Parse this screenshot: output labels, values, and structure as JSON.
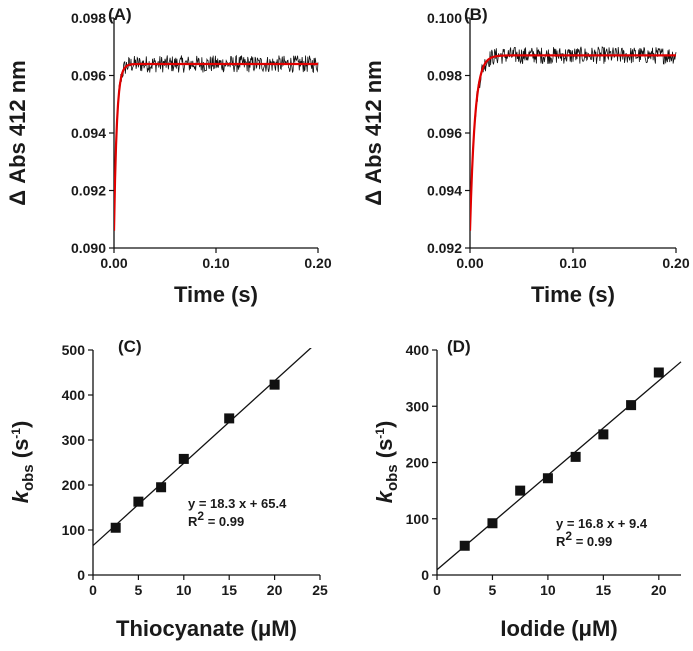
{
  "colors": {
    "fit_line": "#e00000",
    "trace": "#111111",
    "axis": "#111111"
  },
  "chart_data": [
    {
      "panel": "(A)",
      "type": "line",
      "xlabel": "Time (s)",
      "ylabel": "Δ Abs 412 nm",
      "xlim": [
        0,
        0.2
      ],
      "ylim": [
        0.09,
        0.098
      ],
      "xticks": [
        0.0,
        0.1,
        0.2
      ],
      "xtick_labels": [
        "0.00",
        "0.10",
        "0.20"
      ],
      "yticks": [
        0.09,
        0.092,
        0.094,
        0.096,
        0.098
      ],
      "ytick_labels": [
        "0.090",
        "0.092",
        "0.094",
        "0.096",
        "0.098"
      ],
      "series": [
        {
          "name": "observed trace",
          "color": "#111111",
          "y0": 0.0906,
          "plateau": 0.0964,
          "k": 360,
          "noise": 0.0003
        },
        {
          "name": "single-exponential fit",
          "color": "#e00000",
          "y0": 0.0906,
          "plateau": 0.0964,
          "k": 360
        }
      ]
    },
    {
      "panel": "(B)",
      "type": "line",
      "xlabel": "Time (s)",
      "ylabel": "Δ Abs 412 nm",
      "xlim": [
        0,
        0.2
      ],
      "ylim": [
        0.092,
        0.1
      ],
      "xticks": [
        0.0,
        0.1,
        0.2
      ],
      "xtick_labels": [
        "0.00",
        "0.10",
        "0.20"
      ],
      "yticks": [
        0.092,
        0.094,
        0.096,
        0.098,
        0.1
      ],
      "ytick_labels": [
        "0.092",
        "0.094",
        "0.096",
        "0.098",
        "0.100"
      ],
      "series": [
        {
          "name": "observed trace",
          "color": "#111111",
          "y0": 0.0926,
          "plateau": 0.0987,
          "k": 210,
          "noise": 0.0003
        },
        {
          "name": "single-exponential fit",
          "color": "#e00000",
          "y0": 0.0926,
          "plateau": 0.0987,
          "k": 210
        }
      ]
    },
    {
      "panel": "(C)",
      "type": "scatter",
      "xlabel": "Thiocyanate (μM)",
      "ylabel_main": "k",
      "ylabel_sub": "obs",
      "ylabel_unit_open": " (s",
      "ylabel_sup": "-1",
      "ylabel_unit_close": ")",
      "xlim": [
        0,
        25
      ],
      "ylim": [
        0,
        500
      ],
      "xticks": [
        0,
        5,
        10,
        15,
        20,
        25
      ],
      "xtick_labels": [
        "0",
        "5",
        "10",
        "15",
        "20",
        "25"
      ],
      "yticks": [
        0,
        100,
        200,
        300,
        400,
        500
      ],
      "ytick_labels": [
        "0",
        "100",
        "200",
        "300",
        "400",
        "500"
      ],
      "points": {
        "x": [
          2.5,
          5,
          7.5,
          10,
          15,
          20
        ],
        "y": [
          105,
          163,
          195,
          258,
          348,
          423
        ]
      },
      "fit": {
        "slope": 18.3,
        "intercept": 65.4
      },
      "equation": "y = 18.3 x + 65.4",
      "r2_prefix": "R",
      "r2_sup": "2",
      "r2_value": " = 0.99"
    },
    {
      "panel": "(D)",
      "type": "scatter",
      "xlabel": "Iodide (μM)",
      "ylabel_main": "k",
      "ylabel_sub": "obs",
      "ylabel_unit_open": " (s",
      "ylabel_sup": "-1",
      "ylabel_unit_close": ")",
      "xlim": [
        0,
        22
      ],
      "ylim": [
        0,
        400
      ],
      "xticks": [
        0,
        5,
        10,
        15,
        20
      ],
      "xtick_labels": [
        "0",
        "5",
        "10",
        "15",
        "20"
      ],
      "yticks": [
        0,
        100,
        200,
        300,
        400
      ],
      "ytick_labels": [
        "0",
        "100",
        "200",
        "300",
        "400"
      ],
      "points": {
        "x": [
          2.5,
          5,
          7.5,
          10,
          12.5,
          15,
          17.5,
          20
        ],
        "y": [
          52,
          92,
          150,
          172,
          210,
          250,
          302,
          360
        ]
      },
      "fit": {
        "slope": 16.8,
        "intercept": 9.4
      },
      "equation": "y = 16.8 x + 9.4",
      "r2_prefix": "R",
      "r2_sup": "2",
      "r2_value": " = 0.99"
    }
  ]
}
